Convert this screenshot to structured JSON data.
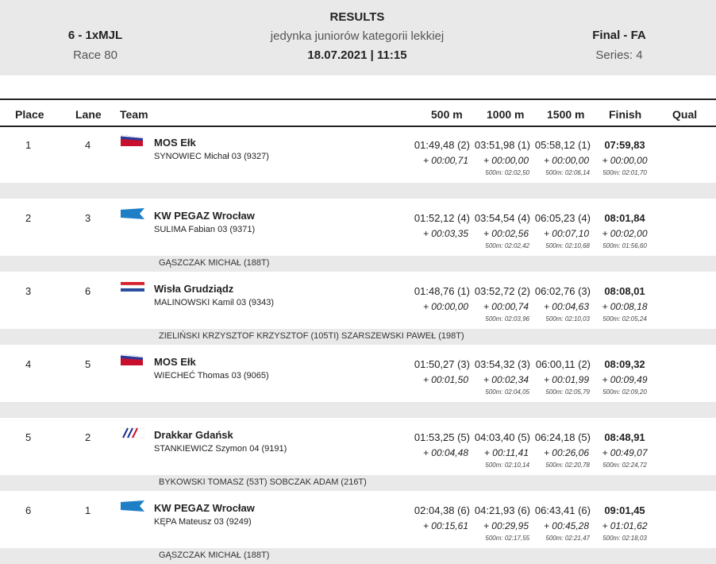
{
  "header": {
    "boat_class": "6 - 1xMJL",
    "race": "Race 80",
    "title": "RESULTS",
    "subtitle": "jedynka juniorów kategorii lekkiej",
    "date_time": "18.07.2021 | 11:15",
    "final": "Final - FA",
    "series": "Series: 4"
  },
  "columns": [
    "Place",
    "Lane",
    "Team",
    "500 m",
    "1000 m",
    "1500 m",
    "Finish",
    "Qual"
  ],
  "rows": [
    {
      "place": "1",
      "lane": "4",
      "team": "MOS Ełk",
      "crew": "SYNOWIEC  Michał 03 (9327)",
      "flag": "ru",
      "t500": "01:49,48 (2)",
      "t1000": "03:51,98 (1)",
      "t1500": "05:58,12 (1)",
      "finish": "07:59,83",
      "d500": "+ 00:00,71",
      "d1000": "+ 00:00,00",
      "d1500": "+ 00:00,00",
      "dfinish": "+ 00:00,00",
      "p1000": "500m: 02:02,50",
      "p1500": "500m: 02:06,14",
      "pfinish": "500m: 02:01,70",
      "coach": ""
    },
    {
      "place": "2",
      "lane": "3",
      "team": "KW PEGAZ Wrocław",
      "crew": "SULIMA  Fabian 03 (9371)",
      "flag": "blue",
      "t500": "01:52,12 (4)",
      "t1000": "03:54,54 (4)",
      "t1500": "06:05,23 (4)",
      "finish": "08:01,84",
      "d500": "+ 00:03,35",
      "d1000": "+ 00:02,56",
      "d1500": "+ 00:07,10",
      "dfinish": "+ 00:02,00",
      "p1000": "500m: 02:02,42",
      "p1500": "500m: 02:10,68",
      "pfinish": "500m: 01:56,60",
      "coach": "GĄSZCZAK MICHAŁ (188T)"
    },
    {
      "place": "3",
      "lane": "6",
      "team": "Wisła Grudziądz",
      "crew": "MALINOWSKI  Kamil 03 (9343)",
      "flag": "nl",
      "t500": "01:48,76 (1)",
      "t1000": "03:52,72 (2)",
      "t1500": "06:02,76 (3)",
      "finish": "08:08,01",
      "d500": "+ 00:00,00",
      "d1000": "+ 00:00,74",
      "d1500": "+ 00:04,63",
      "dfinish": "+ 00:08,18",
      "p1000": "500m: 02:03,96",
      "p1500": "500m: 02:10,03",
      "pfinish": "500m: 02:05,24",
      "coach": "ZIELIŃSKI KRZYSZTOF KRZYSZTOF (105TI) SZARSZEWSKI PAWEŁ (198T)"
    },
    {
      "place": "4",
      "lane": "5",
      "team": "MOS Ełk",
      "crew": "WIECHEĆ  Thomas 03 (9065)",
      "flag": "ru",
      "t500": "01:50,27 (3)",
      "t1000": "03:54,32 (3)",
      "t1500": "06:00,11 (2)",
      "finish": "08:09,32",
      "d500": "+ 00:01,50",
      "d1000": "+ 00:02,34",
      "d1500": "+ 00:01,99",
      "dfinish": "+ 00:09,49",
      "p1000": "500m: 02:04,05",
      "p1500": "500m: 02:05,79",
      "pfinish": "500m: 02:09,20",
      "coach": ""
    },
    {
      "place": "5",
      "lane": "2",
      "team": "Drakkar Gdańsk",
      "crew": "STANKIEWICZ  Szymon 04 (9191)",
      "flag": "stripe",
      "t500": "01:53,25 (5)",
      "t1000": "04:03,40 (5)",
      "t1500": "06:24,18 (5)",
      "finish": "08:48,91",
      "d500": "+ 00:04,48",
      "d1000": "+ 00:11,41",
      "d1500": "+ 00:26,06",
      "dfinish": "+ 00:49,07",
      "p1000": "500m: 02:10,14",
      "p1500": "500m: 02:20,78",
      "pfinish": "500m: 02:24,72",
      "coach": "BYKOWSKI TOMASZ (53T) SOBCZAK ADAM (216T)"
    },
    {
      "place": "6",
      "lane": "1",
      "team": "KW PEGAZ Wrocław",
      "crew": "KĘPA  Mateusz 03 (9249)",
      "flag": "blue",
      "t500": "02:04,38 (6)",
      "t1000": "04:21,93 (6)",
      "t1500": "06:43,41 (6)",
      "finish": "09:01,45",
      "d500": "+ 00:15,61",
      "d1000": "+ 00:29,95",
      "d1500": "+ 00:45,28",
      "dfinish": "+ 01:01,62",
      "p1000": "500m: 02:17,55",
      "p1500": "500m: 02:21,47",
      "pfinish": "500m: 02:18,03",
      "coach": "GĄSZCZAK MICHAŁ (188T)"
    }
  ]
}
